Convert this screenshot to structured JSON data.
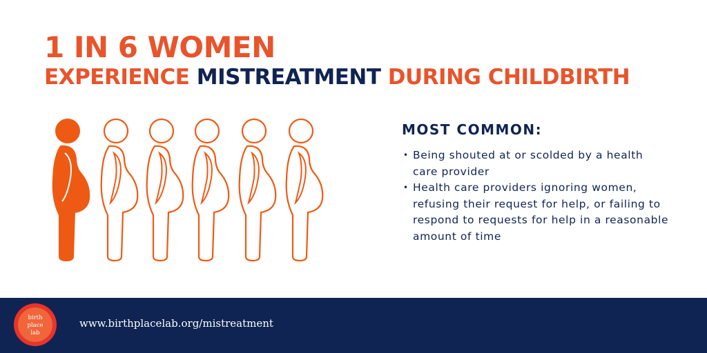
{
  "header": {
    "title": "1 IN 6 WOMEN",
    "subtitle": [
      "EXPERIENCE",
      "MISTREATMENT",
      "DURING CHILDBIRTH"
    ]
  },
  "list": {
    "heading": "MOST COMMON:",
    "items": [
      "Being shouted at or scolded by a health care provider",
      "Health care providers ignoring women, refusing their request for help, or failing to respond to requests for help in a reasonable amount of time"
    ]
  },
  "footer": {
    "logo": [
      "birth",
      "place",
      "lab"
    ],
    "url": "www.birthplacelab.org/mistreatment"
  }
}
